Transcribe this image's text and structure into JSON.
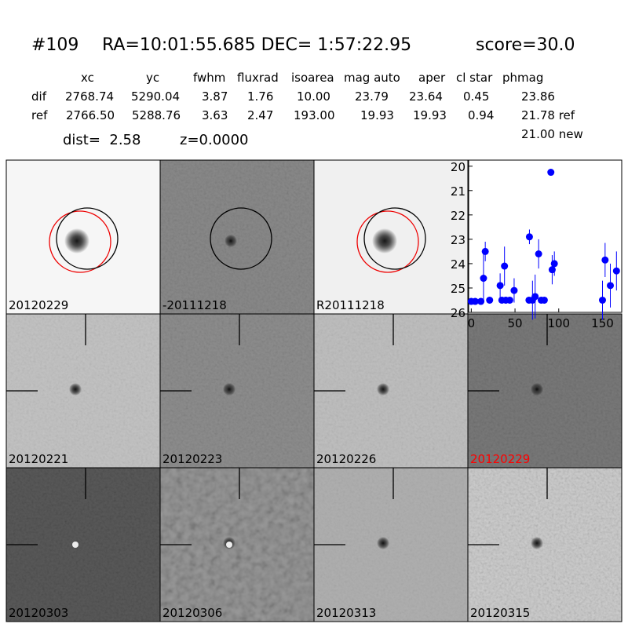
{
  "header": {
    "id": "#109",
    "coords": "RA=10:01:55.685 DEC= 1:57:22.95",
    "score": "score=30.0",
    "dist": "dist=  2.58",
    "z": "z=0.0000"
  },
  "table": {
    "columns": [
      "xc",
      "yc",
      "fwhm",
      "fluxrad",
      "isoarea",
      "mag auto",
      "aper",
      "cl star",
      "phmag"
    ],
    "rows": [
      {
        "label": "dif",
        "values": [
          "2768.74",
          "5290.04",
          "3.87",
          "1.76",
          "10.00",
          "23.79",
          "23.64",
          "0.45",
          "23.86"
        ]
      },
      {
        "label": "ref",
        "values": [
          "2766.50",
          "5288.76",
          "3.63",
          "2.47",
          "193.00",
          "19.93",
          "19.93",
          "0.94",
          "21.78 ref"
        ]
      }
    ],
    "note": "21.00 new"
  },
  "panels": [
    "20120229",
    "-20111218",
    "R20111218",
    "20120221",
    "20120223",
    "20120226",
    "20120229",
    "20120303",
    "20120306",
    "20120313",
    "20120315"
  ],
  "chart_data": {
    "type": "scatter",
    "color": "#0000ff",
    "x": [
      0,
      4.5,
      11,
      14,
      16,
      21,
      33,
      35,
      38,
      39.5,
      44,
      49,
      66,
      66.5,
      70,
      73,
      77,
      80,
      83.5,
      91,
      92.5,
      95,
      150,
      153,
      159,
      166
    ],
    "values": [
      25.55,
      25.55,
      25.55,
      24.6,
      23.5,
      25.5,
      24.9,
      25.5,
      24.1,
      25.5,
      25.5,
      25.1,
      25.5,
      22.9,
      25.5,
      25.35,
      23.6,
      25.5,
      25.5,
      20.25,
      24.25,
      24.0,
      25.5,
      23.85,
      24.9,
      24.3
    ],
    "errors": [
      0.1,
      0.1,
      0.1,
      1.0,
      0.4,
      0.1,
      0.5,
      0.1,
      0.8,
      0.1,
      0.1,
      0.5,
      0.1,
      0.3,
      0.8,
      0.9,
      0.6,
      0.1,
      0.1,
      0.05,
      0.6,
      0.5,
      0.8,
      0.7,
      0.9,
      0.8
    ],
    "xlim": [
      -3,
      172
    ],
    "ylim": [
      26,
      19.75
    ],
    "xticks": [
      0,
      50,
      100,
      150
    ],
    "yticks": [
      20,
      21,
      22,
      23,
      24,
      25,
      26
    ]
  }
}
